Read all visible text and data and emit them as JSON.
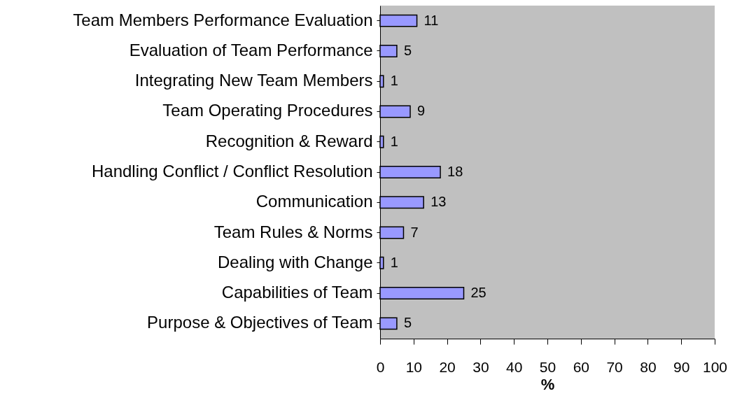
{
  "chart_data": {
    "type": "bar",
    "orientation": "horizontal",
    "xlabel": "%",
    "categories": [
      "Team Members Performance Evaluation",
      "Evaluation of Team Performance",
      "Integrating New Team Members",
      "Team Operating Procedures",
      "Recognition & Reward",
      "Handling Conflict / Conflict Resolution",
      "Communication",
      "Team Rules & Norms",
      "Dealing with Change",
      "Capabilities of Team",
      "Purpose & Objectives of Team"
    ],
    "values": [
      11,
      5,
      1,
      9,
      1,
      18,
      13,
      7,
      1,
      25,
      5
    ],
    "color": "#9999ff",
    "xlim": [
      0,
      100
    ],
    "xticks": [
      0,
      10,
      20,
      30,
      40,
      50,
      60,
      70,
      80,
      90,
      100
    ],
    "data_labels": true,
    "grid": false
  }
}
